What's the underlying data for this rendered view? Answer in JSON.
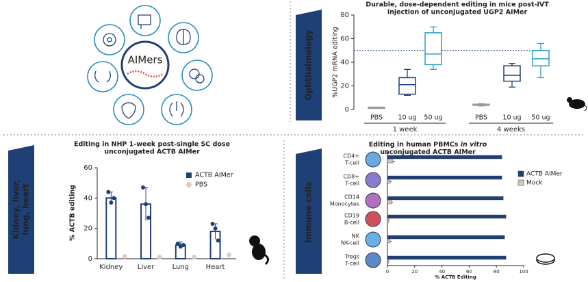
{
  "panels": {
    "center": "AIMers",
    "side_labels": [
      [
        "Ophthalmology"
      ],
      [
        "Kidney, liver,",
        "lung, heart"
      ],
      [
        "Immune cells"
      ]
    ]
  },
  "chart_data": [
    {
      "type": "box",
      "title": [
        "Durable, dose-dependent editing in mice post-IVT",
        "injection of unconjugated UGP2 AIMer"
      ],
      "ylabel": "%UGP2 mRNA editing",
      "ylim": [
        0,
        80
      ],
      "yticks": [
        0,
        20,
        40,
        60,
        80
      ],
      "reference_line": 50,
      "groups": [
        {
          "name": "1 week",
          "categories": [
            "PBS",
            "10 ug",
            "50 ug"
          ],
          "colors": [
            "#9a9a9a",
            "#1f3f77",
            "#2a9fc0"
          ],
          "boxes": [
            {
              "min": 1,
              "q1": 1,
              "median": 1.5,
              "q3": 2,
              "max": 2
            },
            {
              "min": 12,
              "q1": 13,
              "median": 21,
              "q3": 27,
              "max": 34
            },
            {
              "min": 34,
              "q1": 38,
              "median": 47,
              "q3": 65,
              "max": 70
            }
          ]
        },
        {
          "name": "4 weeks",
          "categories": [
            "PBS",
            "10 ug",
            "50 ug"
          ],
          "colors": [
            "#9a9a9a",
            "#1f3f77",
            "#2a9fc0"
          ],
          "boxes": [
            {
              "min": 3,
              "q1": 3.5,
              "median": 4,
              "q3": 4.5,
              "max": 5
            },
            {
              "min": 19,
              "q1": 24,
              "median": 29,
              "q3": 37,
              "max": 39
            },
            {
              "min": 27,
              "q1": 37,
              "median": 43,
              "q3": 50,
              "max": 56
            }
          ]
        }
      ]
    },
    {
      "type": "bar",
      "title": [
        "Editing in NHP 1-week post-single SC dose",
        "unconjugated ACTB AIMer"
      ],
      "ylabel": "% ACTB editing",
      "ylim": [
        0,
        60
      ],
      "yticks": [
        0,
        20,
        40,
        60
      ],
      "categories": [
        "Kidney",
        "Liver",
        "Lung",
        "Heart"
      ],
      "series": [
        {
          "name": "ACTB AIMer",
          "color": "#1f3f77",
          "marker": "bar",
          "values": [
            40,
            36,
            9,
            18
          ],
          "errors": [
            4,
            11,
            2,
            5
          ],
          "points": [
            [
              44,
              37,
              40
            ],
            [
              47,
              36,
              27
            ],
            [
              10,
              8,
              9
            ],
            [
              23,
              20,
              12
            ]
          ]
        },
        {
          "name": "PBS",
          "color": "#d8cfc0",
          "marker": "dot",
          "values": [
            1.5,
            1,
            1,
            2.5
          ]
        }
      ],
      "legend": "top-right"
    },
    {
      "type": "hbar",
      "title": [
        [
          {
            "text": "Editing in human PBMCs "
          },
          {
            "text": "in vitro",
            "italic": true
          }
        ],
        [
          {
            "text": "unconjugated ACTB AIMer"
          }
        ]
      ],
      "xlabel": "% ACTB Editing",
      "xlim": [
        0,
        100
      ],
      "xticks": [
        0,
        20,
        40,
        60,
        80,
        100
      ],
      "categories": [
        [
          "CD4+",
          "T-cell"
        ],
        [
          "CD8+",
          "T-cell"
        ],
        [
          "CD14",
          "Monocytes"
        ],
        [
          "CD19",
          "B-cell"
        ],
        [
          "NK",
          "NK-cell"
        ],
        [
          "Tregs",
          "T-cell"
        ]
      ],
      "series": [
        {
          "name": "ACTB AIMer",
          "color": "#1f3f77",
          "values": [
            84,
            84,
            85,
            87,
            86,
            87
          ]
        },
        {
          "name": "Mock",
          "color": "#cfc9bd",
          "values": [
            4,
            2,
            3,
            1,
            2,
            1
          ],
          "errors": [
            1.5,
            1,
            1,
            0.5,
            1,
            0.5
          ]
        }
      ],
      "legend": "right"
    }
  ]
}
